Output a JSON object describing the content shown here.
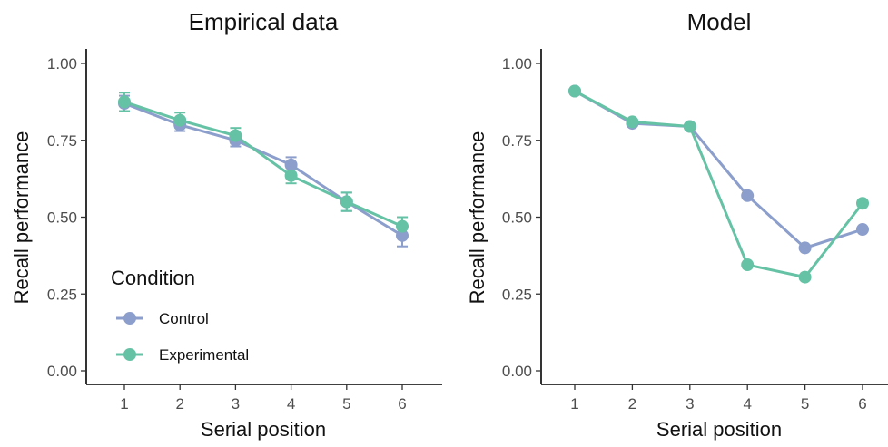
{
  "chart_data": [
    {
      "type": "line",
      "title": "Empirical data",
      "xlabel": "Serial position",
      "ylabel": "Recall performance",
      "x": [
        1,
        2,
        3,
        4,
        5,
        6
      ],
      "x_tick_labels": [
        "1",
        "2",
        "3",
        "4",
        "5",
        "6"
      ],
      "y_tick_labels": [
        "0.00",
        "0.25",
        "0.50",
        "0.75",
        "1.00"
      ],
      "ylim": [
        0,
        1
      ],
      "error_bars": true,
      "grid": false,
      "series": [
        {
          "name": "Control",
          "color": "#8c9ecb",
          "values": [
            0.87,
            0.8,
            0.75,
            0.67,
            0.55,
            0.44
          ],
          "error": [
            0.025,
            0.02,
            0.02,
            0.025,
            0.03,
            0.035
          ]
        },
        {
          "name": "Experimental",
          "color": "#66c2a5",
          "values": [
            0.875,
            0.815,
            0.765,
            0.635,
            0.55,
            0.47
          ],
          "error": [
            0.03,
            0.025,
            0.025,
            0.025,
            0.03,
            0.03
          ]
        }
      ],
      "legend": {
        "title": "Condition",
        "placement": "bottom-left",
        "entries": [
          "Control",
          "Experimental"
        ]
      }
    },
    {
      "type": "line",
      "title": "Model",
      "xlabel": "Serial position",
      "ylabel": "Recall performance",
      "x": [
        1,
        2,
        3,
        4,
        5,
        6
      ],
      "x_tick_labels": [
        "1",
        "2",
        "3",
        "4",
        "5",
        "6"
      ],
      "y_tick_labels": [
        "0.00",
        "0.25",
        "0.50",
        "0.75",
        "1.00"
      ],
      "ylim": [
        0,
        1
      ],
      "error_bars": false,
      "grid": false,
      "series": [
        {
          "name": "Control",
          "color": "#8c9ecb",
          "values": [
            0.91,
            0.805,
            0.795,
            0.57,
            0.4,
            0.46
          ]
        },
        {
          "name": "Experimental",
          "color": "#66c2a5",
          "values": [
            0.91,
            0.81,
            0.795,
            0.345,
            0.305,
            0.545
          ]
        }
      ]
    }
  ]
}
